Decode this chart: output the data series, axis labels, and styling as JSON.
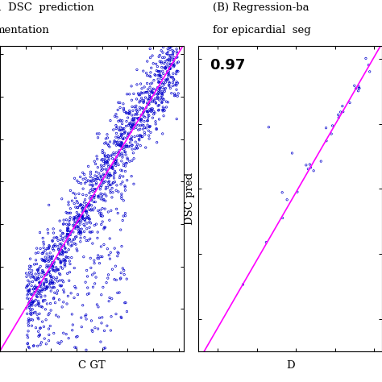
{
  "background_color": "#ffffff",
  "fig_width": 4.74,
  "fig_height": 4.74,
  "left_plot": {
    "title_line1": "d  DSC  prediction",
    "title_line2": "mentation",
    "xlabel": "C GT",
    "n_points": 1500,
    "xlim": [
      0.3,
      1.02
    ],
    "ylim": [
      0.3,
      1.02
    ],
    "scatter_color": "#0000cc",
    "line_color": "#ff00ff",
    "marker_size": 3,
    "marker": "o",
    "seed": 42
  },
  "right_plot": {
    "title_line1": "(B) Regression-ba",
    "title_line2": "for epicardial  seg",
    "ylabel": "DSC pred",
    "xlabel": "D",
    "annotation": "0.97",
    "n_points": 35,
    "xlim": [
      0.55,
      1.02
    ],
    "ylim": [
      0.55,
      1.02
    ],
    "scatter_color": "#0000cc",
    "line_color": "#ff00ff",
    "marker_size": 3,
    "marker": "o",
    "seed": 99
  }
}
